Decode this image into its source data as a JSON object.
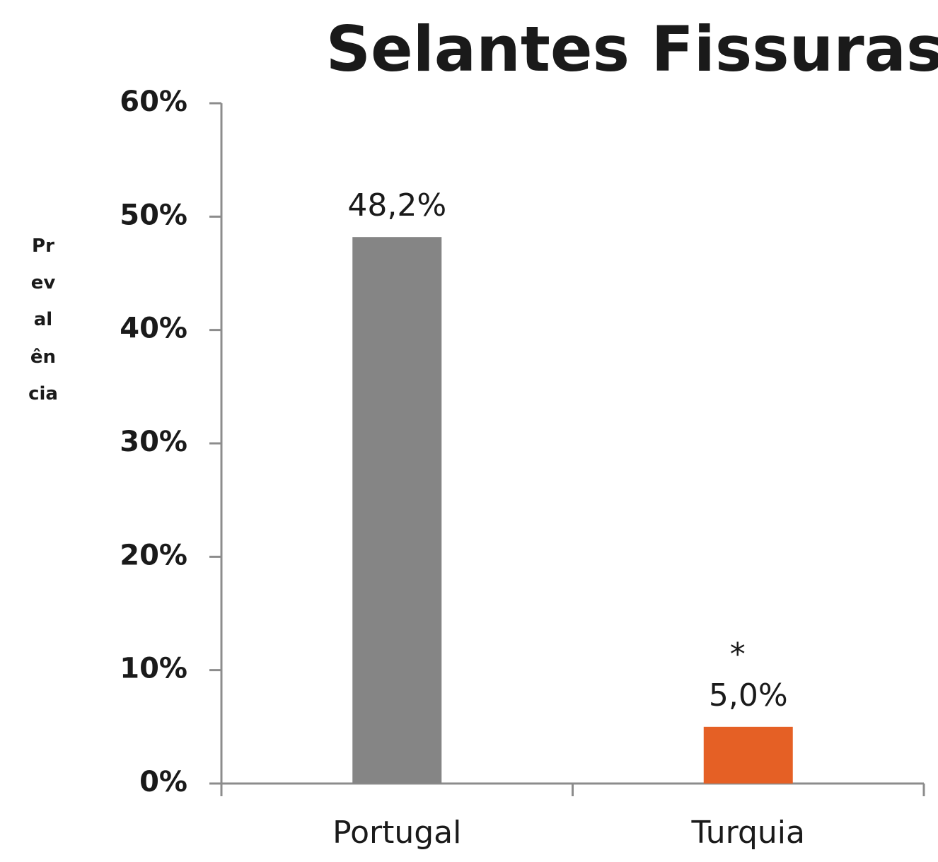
{
  "chart_data": {
    "type": "bar",
    "title": "Selantes Fissuras",
    "y_label": "Prevalência",
    "categories": [
      "Portugal",
      "Turquia"
    ],
    "values": [
      48.2,
      5.0
    ],
    "value_labels": [
      "48,2%",
      "5,0%"
    ],
    "colors": [
      "#858585",
      "#e56025"
    ],
    "annotations": [
      {
        "text": "*",
        "x": "Turquia"
      }
    ],
    "ylim": [
      0,
      60
    ],
    "yticks": [
      {
        "value": 0,
        "label": "0%"
      },
      {
        "value": 10,
        "label": "10%"
      },
      {
        "value": 20,
        "label": "20%"
      },
      {
        "value": 30,
        "label": "30%"
      },
      {
        "value": 40,
        "label": "40%"
      },
      {
        "value": 50,
        "label": "50%"
      },
      {
        "value": 60,
        "label": "60%"
      }
    ],
    "grid": false
  }
}
